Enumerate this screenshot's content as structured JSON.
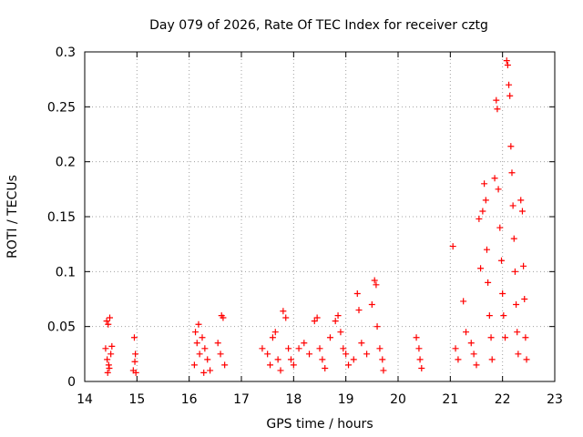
{
  "chart_data": {
    "type": "scatter",
    "title": "Day 079 of 2026, Rate Of TEC Index for receiver cztg",
    "xlabel": "GPS time / hours",
    "ylabel": "ROTI / TECUs",
    "xlim": [
      14,
      23
    ],
    "ylim": [
      0,
      0.3
    ],
    "x_ticks": [
      14,
      15,
      16,
      17,
      18,
      19,
      20,
      21,
      22,
      23
    ],
    "x_tick_labels": [
      "14",
      "15",
      "16",
      "17",
      "18",
      "19",
      "20",
      "21",
      "22",
      "23"
    ],
    "y_ticks": [
      0,
      0.05,
      0.1,
      0.15,
      0.2,
      0.25,
      0.3
    ],
    "y_tick_labels": [
      "0",
      "0.05",
      "0.1",
      "0.15",
      "0.2",
      "0.25",
      "0.3"
    ],
    "grid": true,
    "marker": "+",
    "color": "#ff0000",
    "series": [
      {
        "name": "ROTI",
        "points": [
          [
            14.42,
            0.055
          ],
          [
            14.45,
            0.052
          ],
          [
            14.48,
            0.058
          ],
          [
            14.4,
            0.03
          ],
          [
            14.43,
            0.02
          ],
          [
            14.46,
            0.015
          ],
          [
            14.5,
            0.025
          ],
          [
            14.52,
            0.032
          ],
          [
            14.44,
            0.008
          ],
          [
            14.47,
            0.012
          ],
          [
            14.95,
            0.04
          ],
          [
            14.97,
            0.025
          ],
          [
            14.96,
            0.018
          ],
          [
            14.93,
            0.01
          ],
          [
            14.98,
            0.008
          ],
          [
            16.12,
            0.045
          ],
          [
            16.18,
            0.052
          ],
          [
            16.15,
            0.035
          ],
          [
            16.2,
            0.025
          ],
          [
            16.1,
            0.015
          ],
          [
            16.25,
            0.04
          ],
          [
            16.3,
            0.03
          ],
          [
            16.35,
            0.02
          ],
          [
            16.4,
            0.01
          ],
          [
            16.28,
            0.008
          ],
          [
            16.55,
            0.035
          ],
          [
            16.62,
            0.06
          ],
          [
            16.65,
            0.058
          ],
          [
            16.6,
            0.025
          ],
          [
            16.68,
            0.015
          ],
          [
            17.4,
            0.03
          ],
          [
            17.5,
            0.025
          ],
          [
            17.6,
            0.04
          ],
          [
            17.65,
            0.045
          ],
          [
            17.55,
            0.015
          ],
          [
            17.7,
            0.02
          ],
          [
            17.75,
            0.01
          ],
          [
            17.8,
            0.064
          ],
          [
            17.85,
            0.058
          ],
          [
            17.9,
            0.03
          ],
          [
            17.95,
            0.02
          ],
          [
            18.0,
            0.015
          ],
          [
            18.1,
            0.03
          ],
          [
            18.2,
            0.035
          ],
          [
            18.3,
            0.025
          ],
          [
            18.4,
            0.055
          ],
          [
            18.45,
            0.058
          ],
          [
            18.5,
            0.03
          ],
          [
            18.55,
            0.02
          ],
          [
            18.6,
            0.012
          ],
          [
            18.7,
            0.04
          ],
          [
            18.8,
            0.055
          ],
          [
            18.85,
            0.06
          ],
          [
            18.9,
            0.045
          ],
          [
            18.95,
            0.03
          ],
          [
            19.0,
            0.025
          ],
          [
            19.05,
            0.015
          ],
          [
            19.15,
            0.02
          ],
          [
            19.22,
            0.08
          ],
          [
            19.25,
            0.065
          ],
          [
            19.3,
            0.035
          ],
          [
            19.4,
            0.025
          ],
          [
            19.5,
            0.07
          ],
          [
            19.55,
            0.092
          ],
          [
            19.58,
            0.088
          ],
          [
            19.6,
            0.05
          ],
          [
            19.65,
            0.03
          ],
          [
            19.7,
            0.02
          ],
          [
            19.72,
            0.01
          ],
          [
            20.35,
            0.04
          ],
          [
            20.4,
            0.03
          ],
          [
            20.42,
            0.02
          ],
          [
            20.45,
            0.012
          ],
          [
            21.05,
            0.123
          ],
          [
            21.1,
            0.03
          ],
          [
            21.15,
            0.02
          ],
          [
            21.25,
            0.073
          ],
          [
            21.3,
            0.045
          ],
          [
            21.4,
            0.035
          ],
          [
            21.45,
            0.025
          ],
          [
            21.5,
            0.015
          ],
          [
            21.55,
            0.148
          ],
          [
            21.58,
            0.103
          ],
          [
            21.62,
            0.155
          ],
          [
            21.65,
            0.18
          ],
          [
            21.68,
            0.165
          ],
          [
            21.7,
            0.12
          ],
          [
            21.72,
            0.09
          ],
          [
            21.75,
            0.06
          ],
          [
            21.78,
            0.04
          ],
          [
            21.8,
            0.02
          ],
          [
            21.85,
            0.185
          ],
          [
            21.88,
            0.256
          ],
          [
            21.9,
            0.248
          ],
          [
            21.92,
            0.175
          ],
          [
            21.95,
            0.14
          ],
          [
            21.98,
            0.11
          ],
          [
            22.0,
            0.08
          ],
          [
            22.02,
            0.06
          ],
          [
            22.05,
            0.04
          ],
          [
            22.08,
            0.292
          ],
          [
            22.1,
            0.288
          ],
          [
            22.12,
            0.27
          ],
          [
            22.14,
            0.26
          ],
          [
            22.16,
            0.214
          ],
          [
            22.18,
            0.19
          ],
          [
            22.2,
            0.16
          ],
          [
            22.22,
            0.13
          ],
          [
            22.24,
            0.1
          ],
          [
            22.26,
            0.07
          ],
          [
            22.28,
            0.045
          ],
          [
            22.3,
            0.025
          ],
          [
            22.35,
            0.165
          ],
          [
            22.38,
            0.155
          ],
          [
            22.4,
            0.105
          ],
          [
            22.42,
            0.075
          ],
          [
            22.44,
            0.04
          ],
          [
            22.46,
            0.02
          ]
        ]
      }
    ]
  }
}
